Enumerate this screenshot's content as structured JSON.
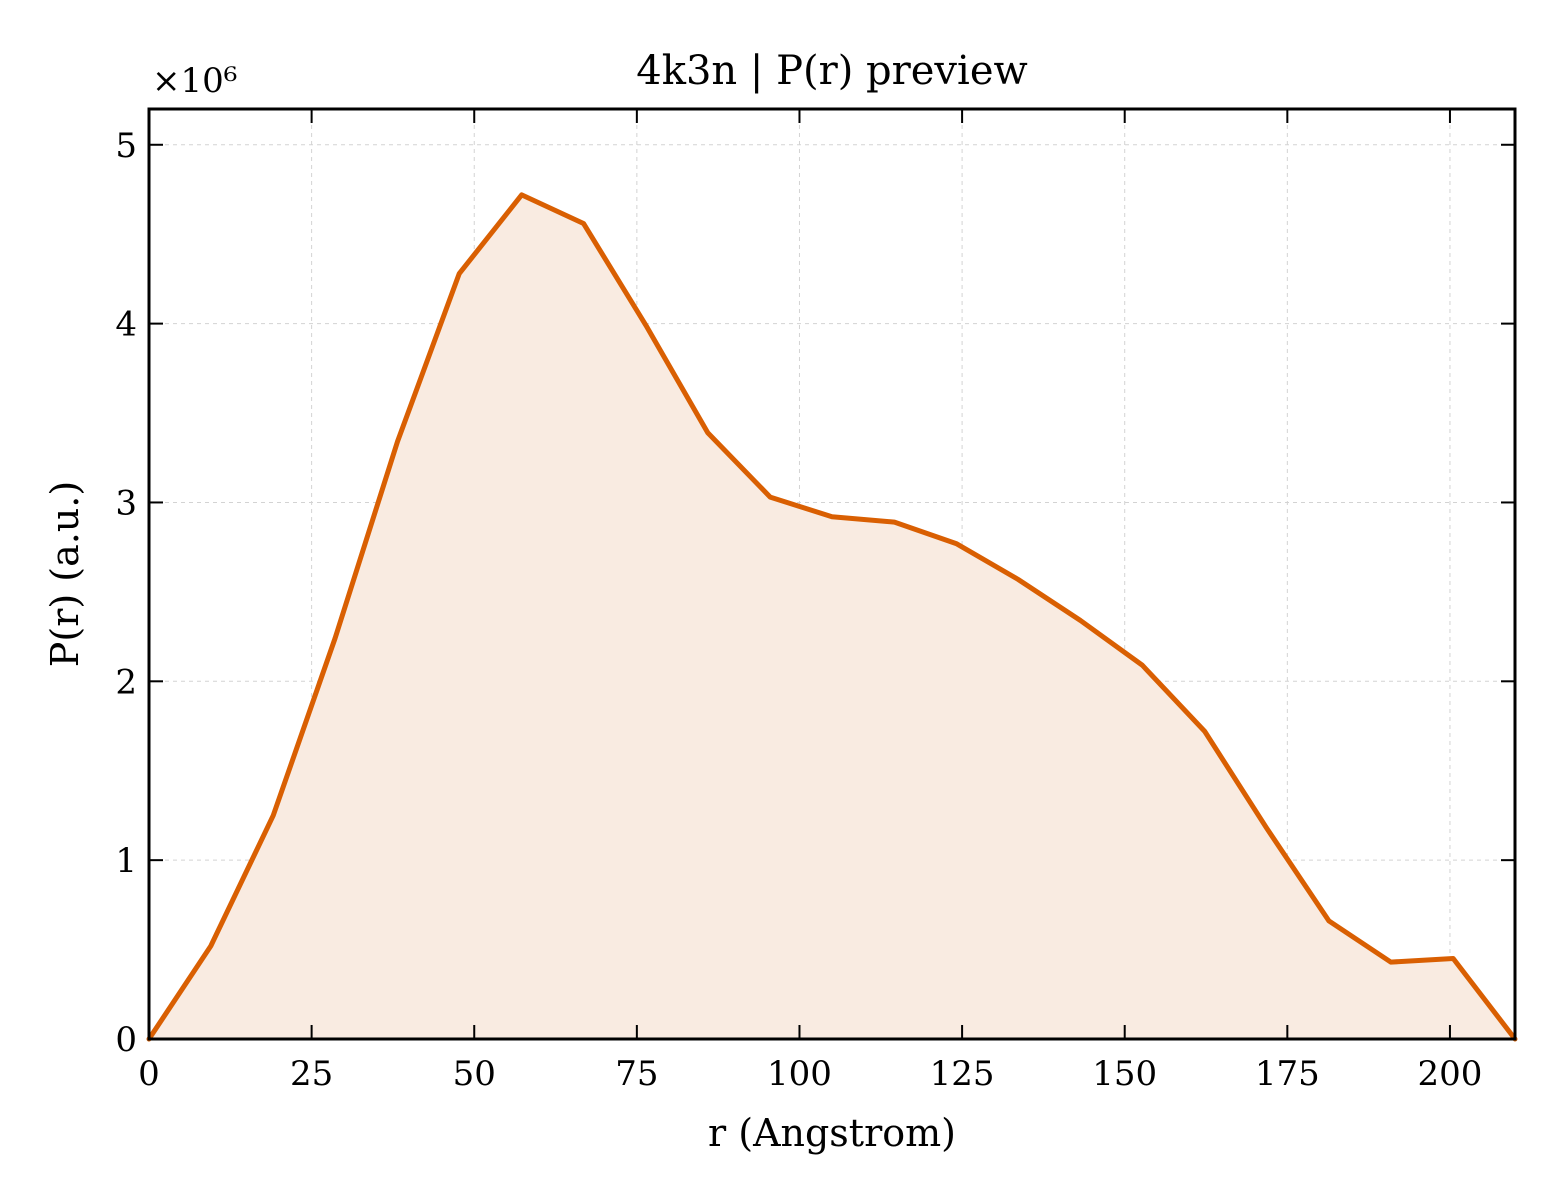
{
  "chart_data": {
    "type": "area",
    "title": "4k3n | P(r) preview",
    "xlabel": "r (Angstrom)",
    "ylabel": "P(r) (a.u.)",
    "y_multiplier_label": "×10⁶",
    "xlim": [
      0,
      210
    ],
    "ylim": [
      0,
      5.2
    ],
    "xticks": [
      0,
      25,
      50,
      75,
      100,
      125,
      150,
      175,
      200
    ],
    "yticks": [
      0,
      1,
      2,
      3,
      4,
      5
    ],
    "grid": true,
    "colors": {
      "line": "#d95f02",
      "fill": "#f9ebe1"
    },
    "series": [
      {
        "x": [
          0,
          9.5,
          19.1,
          28.6,
          38.2,
          47.7,
          57.3,
          66.8,
          76.4,
          85.9,
          95.5,
          105.0,
          114.6,
          124.1,
          133.6,
          143.2,
          152.7,
          162.3,
          171.8,
          181.4,
          190.9,
          200.5,
          210.0
        ],
        "y": [
          0,
          0.52,
          1.25,
          2.24,
          3.34,
          4.28,
          4.72,
          4.56,
          3.99,
          3.39,
          3.03,
          2.92,
          2.89,
          2.77,
          2.57,
          2.34,
          2.09,
          1.72,
          1.18,
          0.66,
          0.43,
          0.45,
          0
        ]
      }
    ]
  }
}
